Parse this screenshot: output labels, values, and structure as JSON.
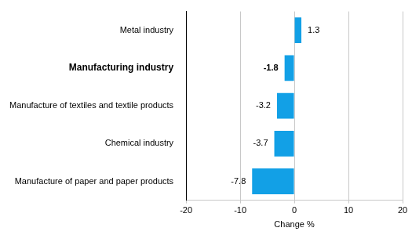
{
  "chart_data": {
    "type": "bar",
    "orientation": "horizontal",
    "categories": [
      "Metal industry",
      "Manufacturing industry",
      "Manufacture of textiles and textile products",
      "Chemical industry",
      "Manufacture of paper and paper products"
    ],
    "values": [
      1.3,
      -1.8,
      -3.2,
      -3.7,
      -7.8
    ],
    "color": "#12a0e6",
    "x_label": "Change %",
    "xlim": [
      -20,
      20
    ],
    "xticks": [
      -20,
      -10,
      0,
      10,
      20
    ],
    "grid": true,
    "data_labels": true
  }
}
